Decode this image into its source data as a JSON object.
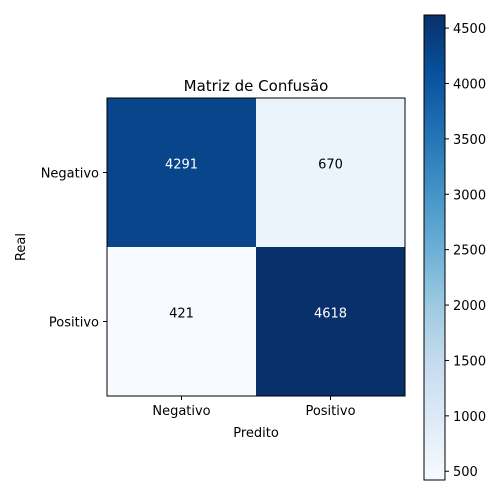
{
  "chart_data": {
    "type": "heatmap",
    "title": "Matriz de Confusão",
    "xlabel": "Predito",
    "ylabel": "Real",
    "x_categories": [
      "Negativo",
      "Positivo"
    ],
    "y_categories": [
      "Negativo",
      "Positivo"
    ],
    "matrix": [
      [
        4291,
        670
      ],
      [
        421,
        4618
      ]
    ],
    "cell_labels": [
      [
        "4291",
        "670"
      ],
      [
        "421",
        "4618"
      ]
    ],
    "colormap": "Blues",
    "color_range": [
      421,
      4618
    ],
    "colorbar": {
      "ticks": [
        500,
        1000,
        1500,
        2000,
        2500,
        3000,
        3500,
        4000,
        4500
      ],
      "tick_labels": [
        "500",
        "1000",
        "1500",
        "2000",
        "2500",
        "3000",
        "3500",
        "4000",
        "4500"
      ]
    },
    "label_colors": {
      "light": "#ffffff",
      "dark": "#000000"
    }
  }
}
